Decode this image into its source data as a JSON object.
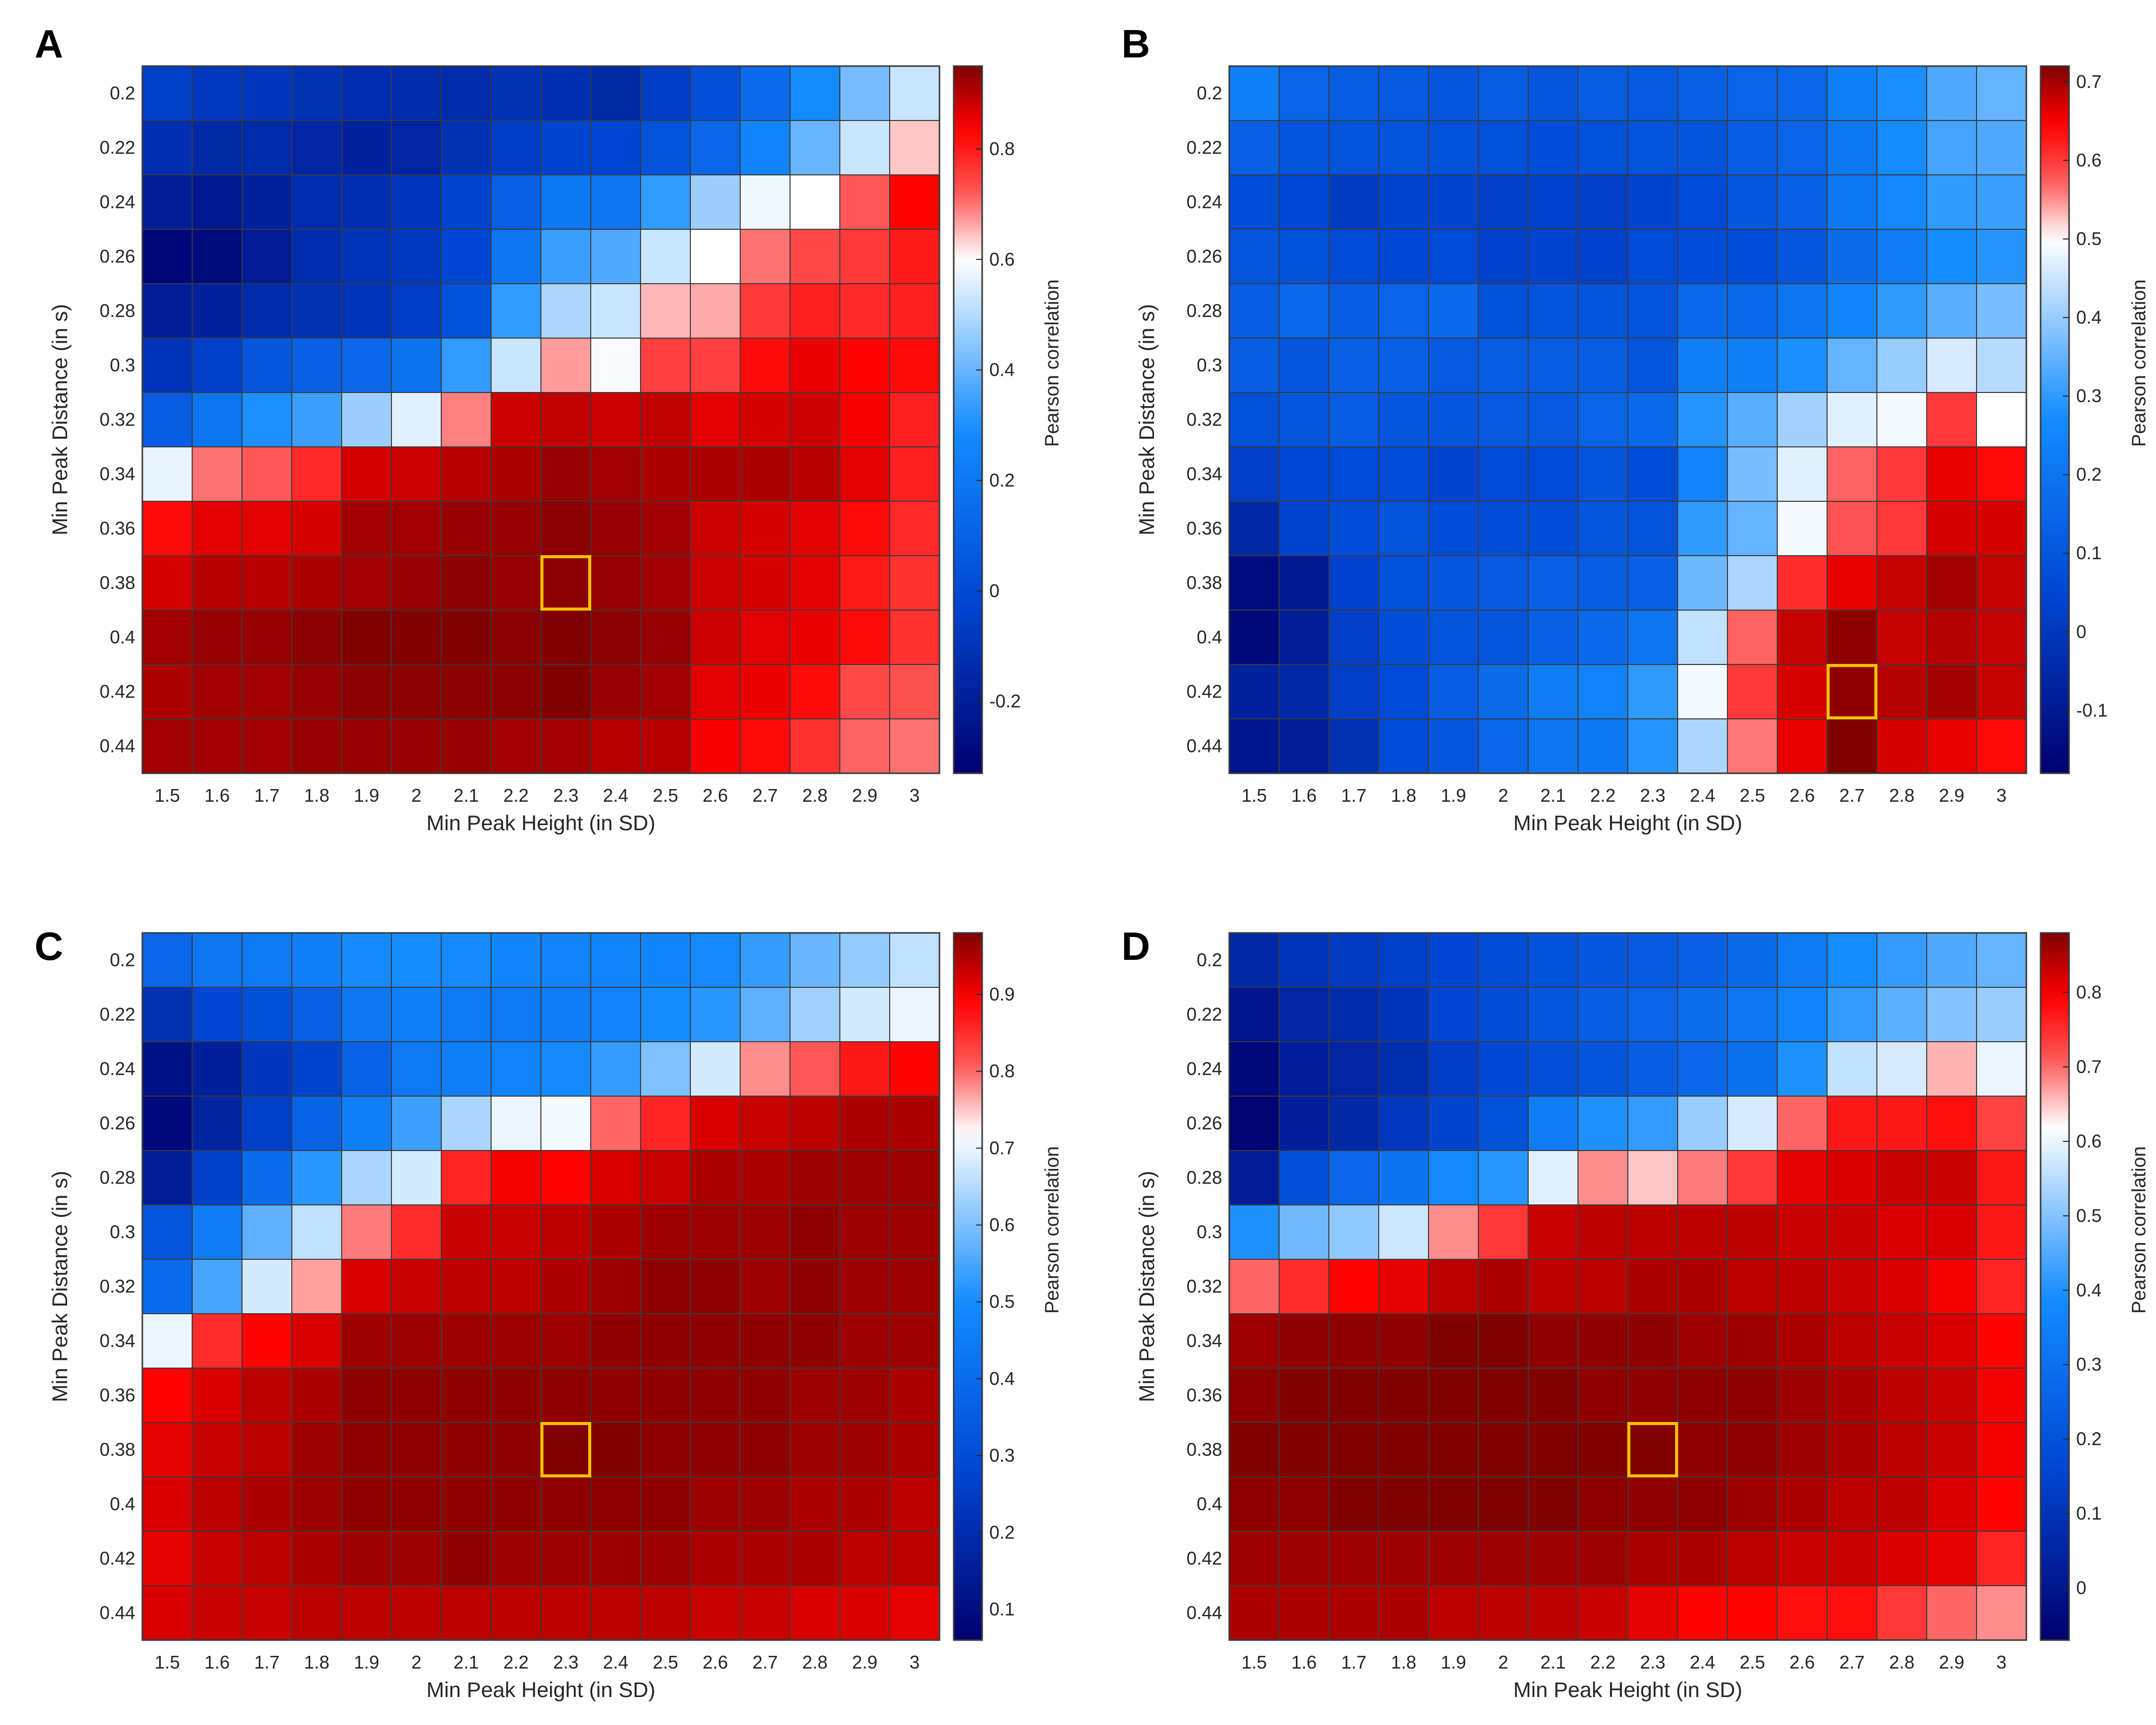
{
  "colors": {
    "highlight": "#f2c200",
    "cell_border": "#3a3a3a",
    "text": "#262626"
  },
  "chart_data": [
    {
      "panel": "A",
      "type": "heatmap",
      "x": [
        "1.5",
        "1.6",
        "1.7",
        "1.8",
        "1.9",
        "2",
        "2.1",
        "2.2",
        "2.3",
        "2.4",
        "2.5",
        "2.6",
        "2.7",
        "2.8",
        "2.9",
        "3"
      ],
      "y": [
        "0.2",
        "0.22",
        "0.24",
        "0.26",
        "0.28",
        "0.3",
        "0.32",
        "0.34",
        "0.36",
        "0.38",
        "0.4",
        "0.42",
        "0.44"
      ],
      "xlabel": "Min Peak Height (in SD)",
      "ylabel": "Min Peak Distance (in s)",
      "colorbar_label": "Pearson correlation",
      "clim": [
        -0.33,
        0.95
      ],
      "center": 0.6,
      "colorbar_ticks": [
        "-0.2",
        "0",
        "0.2",
        "0.4",
        "0.6",
        "0.8"
      ],
      "highlight": {
        "x": "2.3",
        "y": "0.38"
      },
      "values": [
        [
          -0.05,
          -0.08,
          -0.09,
          -0.11,
          -0.13,
          -0.14,
          -0.14,
          -0.11,
          -0.12,
          -0.15,
          -0.06,
          0.02,
          0.15,
          0.29,
          0.42,
          0.53
        ],
        [
          -0.12,
          -0.15,
          -0.14,
          -0.16,
          -0.18,
          -0.17,
          -0.11,
          -0.06,
          -0.03,
          -0.02,
          0.04,
          0.12,
          0.26,
          0.4,
          0.53,
          0.64
        ],
        [
          -0.2,
          -0.23,
          -0.18,
          -0.13,
          -0.12,
          -0.09,
          -0.03,
          0.09,
          0.2,
          0.19,
          0.33,
          0.47,
          0.58,
          0.6,
          0.72,
          0.83
        ],
        [
          -0.3,
          -0.28,
          -0.21,
          -0.13,
          -0.1,
          -0.08,
          -0.02,
          0.19,
          0.34,
          0.37,
          0.53,
          0.6,
          0.7,
          0.74,
          0.76,
          0.8
        ],
        [
          -0.2,
          -0.18,
          -0.14,
          -0.11,
          -0.1,
          -0.06,
          0.03,
          0.33,
          0.49,
          0.53,
          0.65,
          0.66,
          0.76,
          0.79,
          0.78,
          0.79
        ],
        [
          -0.1,
          -0.05,
          0.05,
          0.1,
          0.13,
          0.18,
          0.33,
          0.53,
          0.67,
          0.59,
          0.75,
          0.75,
          0.82,
          0.85,
          0.83,
          0.82
        ],
        [
          0.08,
          0.19,
          0.3,
          0.34,
          0.47,
          0.56,
          0.69,
          0.88,
          0.89,
          0.88,
          0.89,
          0.86,
          0.87,
          0.88,
          0.84,
          0.79
        ],
        [
          0.57,
          0.7,
          0.72,
          0.78,
          0.87,
          0.88,
          0.9,
          0.91,
          0.93,
          0.92,
          0.91,
          0.91,
          0.91,
          0.9,
          0.86,
          0.79
        ],
        [
          0.82,
          0.86,
          0.86,
          0.87,
          0.92,
          0.92,
          0.93,
          0.93,
          0.94,
          0.93,
          0.92,
          0.88,
          0.87,
          0.86,
          0.82,
          0.78
        ],
        [
          0.87,
          0.9,
          0.9,
          0.91,
          0.92,
          0.93,
          0.94,
          0.93,
          0.94,
          0.93,
          0.92,
          0.88,
          0.87,
          0.86,
          0.8,
          0.77
        ],
        [
          0.92,
          0.93,
          0.93,
          0.94,
          0.95,
          0.95,
          0.95,
          0.94,
          0.95,
          0.94,
          0.93,
          0.88,
          0.86,
          0.85,
          0.82,
          0.77
        ],
        [
          0.91,
          0.92,
          0.92,
          0.93,
          0.94,
          0.94,
          0.94,
          0.94,
          0.95,
          0.93,
          0.92,
          0.86,
          0.85,
          0.82,
          0.74,
          0.73
        ],
        [
          0.92,
          0.92,
          0.92,
          0.93,
          0.93,
          0.93,
          0.93,
          0.92,
          0.92,
          0.9,
          0.9,
          0.84,
          0.82,
          0.77,
          0.71,
          0.7
        ]
      ]
    },
    {
      "panel": "B",
      "type": "heatmap",
      "x": [
        "1.5",
        "1.6",
        "1.7",
        "1.8",
        "1.9",
        "2",
        "2.1",
        "2.2",
        "2.3",
        "2.4",
        "2.5",
        "2.6",
        "2.7",
        "2.8",
        "2.9",
        "3"
      ],
      "y": [
        "0.2",
        "0.22",
        "0.24",
        "0.26",
        "0.28",
        "0.3",
        "0.32",
        "0.34",
        "0.36",
        "0.38",
        "0.4",
        "0.42",
        "0.44"
      ],
      "xlabel": "Min Peak Height (in SD)",
      "ylabel": "Min Peak Distance (in s)",
      "colorbar_label": "Pearson correlation",
      "clim": [
        -0.18,
        0.72
      ],
      "center": 0.5,
      "colorbar_ticks": [
        "-0.1",
        "0",
        "0.1",
        "0.2",
        "0.3",
        "0.4",
        "0.5",
        "0.6",
        "0.7"
      ],
      "highlight": {
        "x": "2.7",
        "y": "0.42"
      },
      "values": [
        [
          0.23,
          0.14,
          0.12,
          0.11,
          0.1,
          0.12,
          0.1,
          0.12,
          0.11,
          0.13,
          0.14,
          0.15,
          0.23,
          0.28,
          0.33,
          0.35
        ],
        [
          0.13,
          0.09,
          0.09,
          0.09,
          0.08,
          0.08,
          0.07,
          0.08,
          0.09,
          0.09,
          0.12,
          0.14,
          0.21,
          0.27,
          0.32,
          0.33
        ],
        [
          0.07,
          0.05,
          0.01,
          0.04,
          0.04,
          0.02,
          0.03,
          0.02,
          0.04,
          0.06,
          0.1,
          0.13,
          0.21,
          0.26,
          0.3,
          0.31
        ],
        [
          0.1,
          0.08,
          0.06,
          0.05,
          0.06,
          0.03,
          0.04,
          0.03,
          0.06,
          0.07,
          0.07,
          0.1,
          0.17,
          0.22,
          0.27,
          0.29
        ],
        [
          0.12,
          0.16,
          0.12,
          0.14,
          0.16,
          0.08,
          0.09,
          0.09,
          0.09,
          0.16,
          0.16,
          0.2,
          0.25,
          0.3,
          0.34,
          0.37
        ],
        [
          0.12,
          0.1,
          0.13,
          0.13,
          0.11,
          0.12,
          0.12,
          0.12,
          0.1,
          0.23,
          0.23,
          0.28,
          0.35,
          0.4,
          0.46,
          0.43
        ],
        [
          0.08,
          0.1,
          0.12,
          0.1,
          0.1,
          0.11,
          0.11,
          0.14,
          0.16,
          0.29,
          0.34,
          0.41,
          0.47,
          0.49,
          0.6,
          0.5
        ],
        [
          0.02,
          0.05,
          0.06,
          0.06,
          0.04,
          0.06,
          0.06,
          0.09,
          0.07,
          0.24,
          0.37,
          0.47,
          0.57,
          0.6,
          0.66,
          0.64
        ],
        [
          -0.05,
          0.04,
          0.07,
          0.09,
          0.07,
          0.07,
          0.07,
          0.1,
          0.09,
          0.3,
          0.35,
          0.49,
          0.58,
          0.6,
          0.67,
          0.67
        ],
        [
          -0.14,
          -0.1,
          0.03,
          0.08,
          0.1,
          0.11,
          0.13,
          0.12,
          0.13,
          0.36,
          0.42,
          0.61,
          0.66,
          0.68,
          0.7,
          0.68
        ],
        [
          -0.15,
          -0.09,
          0.02,
          0.07,
          0.09,
          0.1,
          0.13,
          0.16,
          0.2,
          0.44,
          0.57,
          0.68,
          0.71,
          0.68,
          0.69,
          0.68
        ],
        [
          -0.07,
          -0.05,
          0.02,
          0.06,
          0.12,
          0.17,
          0.22,
          0.24,
          0.3,
          0.49,
          0.6,
          0.67,
          0.71,
          0.69,
          0.7,
          0.68
        ],
        [
          -0.11,
          -0.09,
          -0.02,
          0.06,
          0.1,
          0.15,
          0.2,
          0.21,
          0.29,
          0.42,
          0.56,
          0.66,
          0.72,
          0.67,
          0.66,
          0.64
        ]
      ]
    },
    {
      "panel": "C",
      "type": "heatmap",
      "x": [
        "1.5",
        "1.6",
        "1.7",
        "1.8",
        "1.9",
        "2",
        "2.1",
        "2.2",
        "2.3",
        "2.4",
        "2.5",
        "2.6",
        "2.7",
        "2.8",
        "2.9",
        "3"
      ],
      "y": [
        "0.2",
        "0.22",
        "0.24",
        "0.26",
        "0.28",
        "0.3",
        "0.32",
        "0.34",
        "0.36",
        "0.38",
        "0.4",
        "0.42",
        "0.44"
      ],
      "xlabel": "Min Peak Height (in SD)",
      "ylabel": "Min Peak Distance (in s)",
      "colorbar_label": "Pearson correlation",
      "clim": [
        0.06,
        0.98
      ],
      "center": 0.72,
      "colorbar_ticks": [
        "0.1",
        "0.2",
        "0.3",
        "0.4",
        "0.5",
        "0.6",
        "0.7",
        "0.8",
        "0.9"
      ],
      "highlight": {
        "x": "2.3",
        "y": "0.38"
      },
      "values": [
        [
          0.38,
          0.43,
          0.44,
          0.46,
          0.49,
          0.5,
          0.49,
          0.48,
          0.47,
          0.48,
          0.48,
          0.49,
          0.53,
          0.58,
          0.62,
          0.66
        ],
        [
          0.21,
          0.28,
          0.31,
          0.36,
          0.43,
          0.46,
          0.44,
          0.44,
          0.45,
          0.47,
          0.5,
          0.52,
          0.57,
          0.63,
          0.68,
          0.7
        ],
        [
          0.11,
          0.16,
          0.23,
          0.27,
          0.37,
          0.44,
          0.46,
          0.47,
          0.49,
          0.53,
          0.6,
          0.68,
          0.78,
          0.81,
          0.87,
          0.89
        ],
        [
          0.09,
          0.17,
          0.26,
          0.37,
          0.46,
          0.54,
          0.64,
          0.7,
          0.71,
          0.8,
          0.86,
          0.92,
          0.93,
          0.94,
          0.95,
          0.95
        ],
        [
          0.15,
          0.26,
          0.4,
          0.52,
          0.64,
          0.68,
          0.86,
          0.9,
          0.89,
          0.92,
          0.93,
          0.95,
          0.95,
          0.96,
          0.96,
          0.96
        ],
        [
          0.33,
          0.45,
          0.57,
          0.66,
          0.79,
          0.85,
          0.93,
          0.93,
          0.94,
          0.95,
          0.96,
          0.96,
          0.96,
          0.97,
          0.96,
          0.96
        ],
        [
          0.4,
          0.55,
          0.68,
          0.77,
          0.92,
          0.93,
          0.94,
          0.94,
          0.95,
          0.96,
          0.97,
          0.97,
          0.96,
          0.97,
          0.96,
          0.96
        ],
        [
          0.7,
          0.85,
          0.89,
          0.92,
          0.96,
          0.96,
          0.96,
          0.96,
          0.96,
          0.97,
          0.97,
          0.97,
          0.97,
          0.97,
          0.96,
          0.96
        ],
        [
          0.89,
          0.92,
          0.94,
          0.95,
          0.97,
          0.97,
          0.97,
          0.97,
          0.97,
          0.97,
          0.97,
          0.97,
          0.97,
          0.96,
          0.96,
          0.95
        ],
        [
          0.91,
          0.93,
          0.94,
          0.96,
          0.97,
          0.97,
          0.97,
          0.97,
          0.98,
          0.98,
          0.97,
          0.97,
          0.97,
          0.96,
          0.96,
          0.95
        ],
        [
          0.92,
          0.94,
          0.95,
          0.96,
          0.97,
          0.97,
          0.97,
          0.97,
          0.97,
          0.97,
          0.97,
          0.96,
          0.96,
          0.95,
          0.95,
          0.94
        ],
        [
          0.91,
          0.93,
          0.94,
          0.95,
          0.96,
          0.96,
          0.97,
          0.96,
          0.96,
          0.96,
          0.96,
          0.95,
          0.95,
          0.95,
          0.94,
          0.94
        ],
        [
          0.92,
          0.93,
          0.93,
          0.94,
          0.94,
          0.94,
          0.94,
          0.94,
          0.94,
          0.94,
          0.94,
          0.93,
          0.93,
          0.92,
          0.92,
          0.91
        ]
      ]
    },
    {
      "panel": "D",
      "type": "heatmap",
      "x": [
        "1.5",
        "1.6",
        "1.7",
        "1.8",
        "1.9",
        "2",
        "2.1",
        "2.2",
        "2.3",
        "2.4",
        "2.5",
        "2.6",
        "2.7",
        "2.8",
        "2.9",
        "3"
      ],
      "y": [
        "0.2",
        "0.22",
        "0.24",
        "0.26",
        "0.28",
        "0.3",
        "0.32",
        "0.34",
        "0.36",
        "0.38",
        "0.4",
        "0.42",
        "0.44"
      ],
      "xlabel": "Min Peak Height (in SD)",
      "ylabel": "Min Peak Distance (in s)",
      "colorbar_label": "Pearson correlation",
      "clim": [
        -0.07,
        0.88
      ],
      "center": 0.62,
      "colorbar_ticks": [
        "0",
        "0.1",
        "0.2",
        "0.3",
        "0.4",
        "0.5",
        "0.6",
        "0.7",
        "0.8"
      ],
      "highlight": {
        "x": "2.3",
        "y": "0.38"
      },
      "values": [
        [
          0.06,
          0.1,
          0.12,
          0.14,
          0.16,
          0.18,
          0.2,
          0.22,
          0.23,
          0.25,
          0.28,
          0.33,
          0.39,
          0.42,
          0.45,
          0.47
        ],
        [
          0.0,
          0.05,
          0.07,
          0.1,
          0.16,
          0.18,
          0.22,
          0.24,
          0.26,
          0.29,
          0.32,
          0.36,
          0.42,
          0.46,
          0.5,
          0.52
        ],
        [
          -0.04,
          0.03,
          0.05,
          0.08,
          0.13,
          0.17,
          0.19,
          0.21,
          0.24,
          0.27,
          0.3,
          0.4,
          0.56,
          0.58,
          0.66,
          0.6
        ],
        [
          -0.06,
          0.03,
          0.06,
          0.11,
          0.15,
          0.2,
          0.34,
          0.4,
          0.42,
          0.52,
          0.58,
          0.7,
          0.77,
          0.77,
          0.78,
          0.73
        ],
        [
          0.02,
          0.19,
          0.27,
          0.31,
          0.38,
          0.41,
          0.59,
          0.68,
          0.65,
          0.69,
          0.74,
          0.81,
          0.82,
          0.83,
          0.83,
          0.77
        ],
        [
          0.4,
          0.48,
          0.51,
          0.57,
          0.68,
          0.74,
          0.83,
          0.84,
          0.84,
          0.84,
          0.84,
          0.83,
          0.83,
          0.82,
          0.82,
          0.77
        ],
        [
          0.7,
          0.75,
          0.79,
          0.81,
          0.84,
          0.85,
          0.84,
          0.84,
          0.85,
          0.85,
          0.84,
          0.84,
          0.83,
          0.82,
          0.8,
          0.76
        ],
        [
          0.86,
          0.87,
          0.87,
          0.87,
          0.88,
          0.88,
          0.87,
          0.87,
          0.87,
          0.86,
          0.86,
          0.85,
          0.84,
          0.83,
          0.82,
          0.79
        ],
        [
          0.87,
          0.88,
          0.88,
          0.88,
          0.88,
          0.88,
          0.88,
          0.87,
          0.87,
          0.87,
          0.87,
          0.86,
          0.85,
          0.84,
          0.83,
          0.8
        ],
        [
          0.88,
          0.88,
          0.88,
          0.88,
          0.88,
          0.88,
          0.88,
          0.88,
          0.88,
          0.87,
          0.87,
          0.86,
          0.85,
          0.84,
          0.83,
          0.8
        ],
        [
          0.87,
          0.87,
          0.88,
          0.88,
          0.88,
          0.88,
          0.88,
          0.87,
          0.87,
          0.87,
          0.86,
          0.85,
          0.84,
          0.84,
          0.82,
          0.79
        ],
        [
          0.86,
          0.86,
          0.86,
          0.86,
          0.86,
          0.86,
          0.86,
          0.86,
          0.85,
          0.85,
          0.84,
          0.83,
          0.83,
          0.82,
          0.81,
          0.76
        ],
        [
          0.85,
          0.85,
          0.85,
          0.85,
          0.84,
          0.84,
          0.84,
          0.83,
          0.81,
          0.79,
          0.79,
          0.78,
          0.78,
          0.74,
          0.7,
          0.68
        ]
      ]
    }
  ]
}
